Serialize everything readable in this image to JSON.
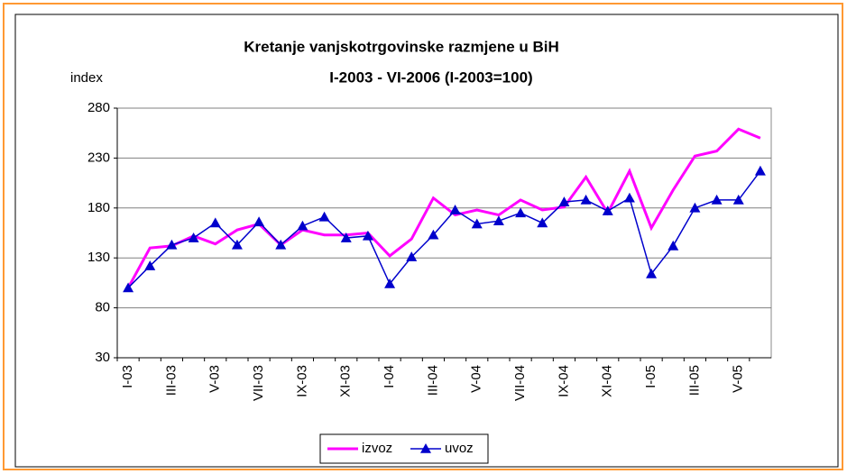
{
  "chart_data": {
    "type": "line",
    "title": "Kretanje vanjskotrgovinske razmjene u BiH",
    "subtitle": "I-2003 -  VI-2006  (I-2003=100)",
    "y_label": "index",
    "categories": [
      "I-03",
      null,
      "III-03",
      null,
      "V-03",
      null,
      "VII-03",
      null,
      "IX-03",
      null,
      "XI-03",
      null,
      "I-04",
      null,
      "III-04",
      null,
      "V-04",
      null,
      "VII-04",
      null,
      "IX-04",
      null,
      "XI-04",
      null,
      "I-05",
      null,
      "III-05",
      null,
      "V-05",
      null
    ],
    "series": [
      {
        "name": "izvoz",
        "color": "#ff00ff",
        "marker": "none",
        "values": [
          100,
          140,
          142,
          152,
          144,
          158,
          164,
          143,
          158,
          153,
          153,
          155,
          132,
          149,
          190,
          173,
          178,
          173,
          188,
          178,
          181,
          211,
          175,
          217,
          160,
          198,
          232,
          237,
          259,
          250
        ]
      },
      {
        "name": "uvoz",
        "color": "#0000cc",
        "marker": "triangle",
        "values": [
          100,
          122,
          143,
          150,
          165,
          143,
          166,
          143,
          162,
          171,
          150,
          152,
          104,
          131,
          153,
          178,
          164,
          167,
          175,
          165,
          186,
          188,
          177,
          190,
          114,
          142,
          180,
          188,
          188,
          217
        ]
      }
    ],
    "ylim": [
      30,
      280
    ],
    "yticks": [
      30,
      80,
      130,
      180,
      230,
      280
    ],
    "grid": true,
    "legend": "bottom"
  }
}
